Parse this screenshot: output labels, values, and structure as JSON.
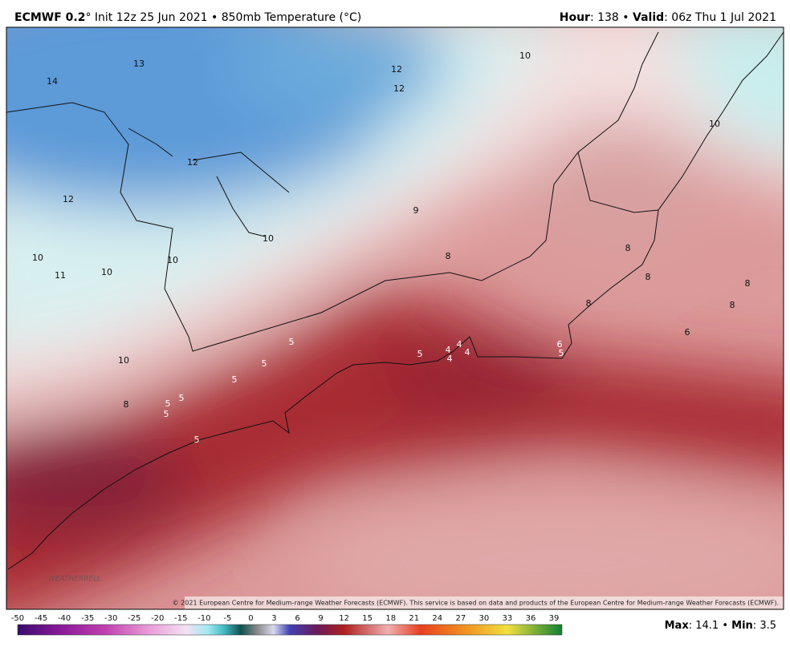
{
  "header": {
    "left": [
      "ECMWF 0.2",
      "° Init 12z 25 Jun 2021 • 850mb Temperature (°C)"
    ],
    "right": [
      "Hour",
      ": 138 • ",
      "Valid",
      ": 06z Thu 1 Jul 2021"
    ]
  },
  "map_labels": [
    14,
    13,
    12,
    12,
    10,
    10,
    12,
    12,
    9,
    10,
    10,
    11,
    10,
    10,
    8,
    8,
    8,
    8,
    8,
    8,
    6,
    5,
    5,
    5,
    10,
    8,
    5,
    5,
    5,
    5,
    5,
    4,
    4,
    4,
    4,
    6,
    5
  ],
  "logo": "WEATHERBELL",
  "copyright": "© 2021 European Centre for Medium-range Weather Forecasts (ECMWF). This service is based on data and products of the European Centre for Medium-range Weather Forecasts (ECMWF).",
  "colorbar": {
    "ticks": [
      -50,
      -45,
      -40,
      -35,
      -30,
      -25,
      -20,
      -15,
      -10,
      -5,
      0,
      3,
      6,
      9,
      12,
      15,
      18,
      21,
      24,
      27,
      30,
      33,
      36,
      39
    ]
  },
  "footer": {
    "max_label": "Max",
    "max_sep": ": ",
    "max": 14.1,
    "sep": " • ",
    "min_label": "Min",
    "min_sep": ": ",
    "min": 3.5
  }
}
